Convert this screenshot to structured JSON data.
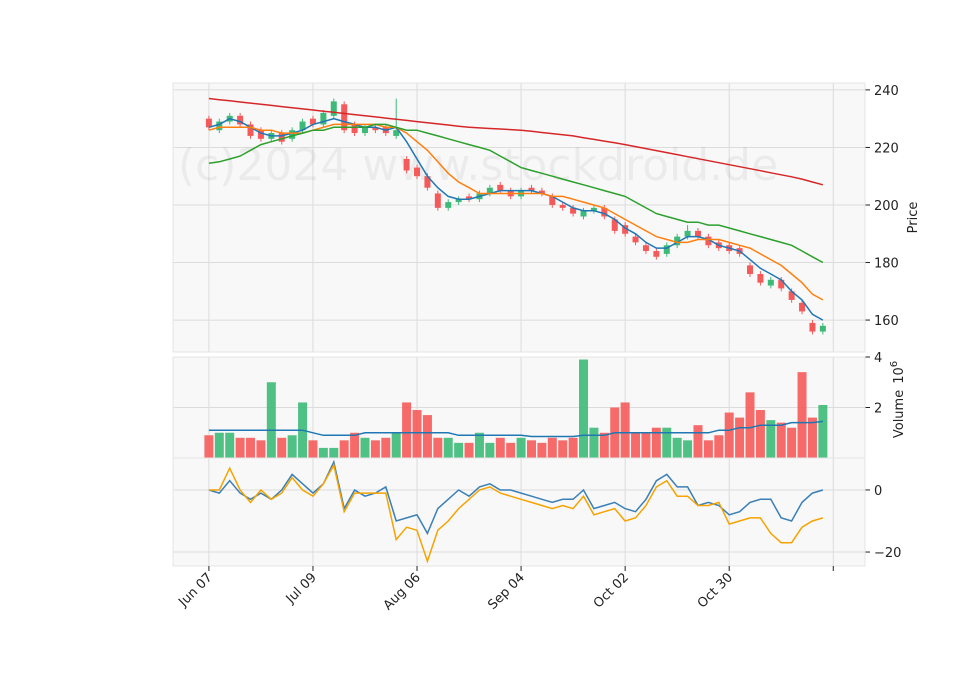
{
  "chart_data": [
    {
      "type": "candlestick",
      "ylabel": "Price",
      "annotation": "(c)2024 www.stockdroid.de",
      "x": [
        0,
        2,
        4,
        6,
        8,
        10,
        12,
        14,
        16,
        18,
        20,
        22,
        24,
        26,
        28,
        30,
        32,
        34,
        36,
        38,
        40,
        42,
        44,
        46,
        48,
        50,
        52,
        54,
        56,
        58,
        60,
        62,
        64,
        66,
        68,
        70,
        72,
        74,
        76,
        78,
        80,
        82,
        84,
        86,
        88,
        90,
        92,
        94,
        96,
        98,
        100,
        102,
        104,
        106,
        108,
        110,
        112,
        114,
        116,
        118
      ],
      "open": [
        230,
        226,
        229,
        231,
        228,
        226,
        223,
        225,
        223,
        226,
        230,
        228,
        231,
        235,
        228,
        225,
        227,
        227,
        224,
        216,
        213,
        210,
        204,
        199,
        201,
        203,
        202,
        204,
        207,
        205,
        203,
        206,
        205,
        203,
        200,
        199,
        196,
        198,
        199,
        195,
        193,
        189,
        186,
        184,
        183,
        186,
        189,
        191,
        189,
        187,
        186,
        185,
        179,
        176,
        172,
        174,
        170,
        166,
        159,
        156
      ],
      "high": [
        231,
        230,
        232,
        232,
        229,
        227,
        226,
        226,
        227,
        230,
        231,
        233,
        237,
        236,
        229,
        228,
        228,
        228,
        237,
        217,
        214,
        211,
        205,
        202,
        203,
        204,
        205,
        207,
        208,
        206,
        206,
        207,
        206,
        204,
        201,
        200,
        199,
        200,
        200,
        196,
        194,
        190,
        187,
        185,
        187,
        190,
        193,
        192,
        190,
        188,
        187,
        186,
        180,
        177,
        175,
        175,
        171,
        167,
        160,
        159
      ],
      "low": [
        226,
        225,
        228,
        227,
        223,
        222,
        222,
        221,
        222,
        225,
        227,
        227,
        230,
        225,
        224,
        224,
        225,
        224,
        223,
        211,
        209,
        205,
        198,
        198,
        200,
        201,
        201,
        203,
        204,
        202,
        202,
        204,
        203,
        199,
        198,
        196,
        195,
        197,
        195,
        190,
        189,
        186,
        183,
        181,
        182,
        185,
        188,
        188,
        185,
        184,
        183,
        182,
        175,
        172,
        171,
        170,
        166,
        162,
        155,
        155
      ],
      "close": [
        227,
        229,
        231,
        228,
        224,
        223,
        225,
        222,
        226,
        229,
        228,
        232,
        236,
        226,
        225,
        227,
        226,
        225,
        226,
        212,
        210,
        206,
        199,
        201,
        202,
        202,
        204,
        206,
        205,
        203,
        205,
        205,
        204,
        200,
        199,
        197,
        198,
        199,
        196,
        191,
        190,
        187,
        184,
        182,
        186,
        189,
        191,
        189,
        186,
        185,
        184,
        183,
        176,
        173,
        174,
        171,
        167,
        163,
        156,
        158
      ],
      "up_color": "#3dba78",
      "down_color": "#f55a5a",
      "series": [
        {
          "color": "#1f77b4",
          "values": [
            227,
            228,
            230,
            229,
            227,
            225,
            224,
            224,
            225,
            226,
            228,
            229,
            230,
            229,
            228,
            227,
            227,
            226,
            227,
            222,
            216,
            210,
            206,
            203,
            202,
            202,
            203,
            204,
            205,
            205,
            205,
            205,
            204,
            203,
            201,
            199,
            198,
            198,
            197,
            195,
            192,
            190,
            187,
            185,
            185,
            187,
            189,
            189,
            188,
            186,
            185,
            184,
            181,
            178,
            176,
            174,
            170,
            167,
            162,
            160
          ]
        },
        {
          "color": "#ff7f0e",
          "values": [
            226,
            227,
            227,
            227,
            227,
            226,
            226,
            225,
            225,
            225,
            226,
            227,
            228,
            228,
            228,
            228,
            228,
            227,
            227,
            225,
            222,
            219,
            215,
            211,
            208,
            206,
            204,
            204,
            204,
            204,
            204,
            204,
            204,
            203,
            203,
            202,
            201,
            200,
            199,
            197,
            195,
            193,
            191,
            189,
            188,
            187,
            187,
            188,
            188,
            188,
            187,
            186,
            185,
            183,
            181,
            179,
            176,
            173,
            169,
            167
          ]
        },
        {
          "color": "#2ca02c",
          "values": [
            214.5,
            215,
            216,
            217,
            219,
            221,
            222,
            223,
            224,
            225,
            226,
            226,
            227,
            227,
            227,
            227,
            228,
            228,
            227,
            226,
            226,
            225,
            224,
            223,
            222,
            221,
            220,
            219,
            217,
            215,
            213,
            212,
            211,
            210,
            209,
            208,
            207,
            206,
            205,
            204,
            203,
            201,
            199,
            197,
            196,
            195,
            194,
            194,
            193,
            193,
            192,
            191,
            190,
            189,
            188,
            187,
            186,
            184,
            182,
            180
          ]
        },
        {
          "color": "#d62728",
          "values": [
            237,
            236.6,
            236.2,
            235.8,
            235.4,
            235,
            234.6,
            234.2,
            233.8,
            233.4,
            233,
            232.6,
            232.2,
            231.8,
            231.4,
            231,
            230.6,
            230.2,
            229.8,
            229.4,
            229,
            228.6,
            228.2,
            227.8,
            227.4,
            227,
            226.8,
            226.6,
            226.4,
            226.2,
            226,
            225.6,
            225.2,
            224.8,
            224.4,
            224,
            223.4,
            222.8,
            222.2,
            221.6,
            221,
            220.3,
            219.6,
            218.9,
            218.2,
            217.5,
            216.8,
            216.1,
            215.4,
            214.7,
            214,
            213.3,
            212.6,
            211.9,
            211.2,
            210.5,
            209.8,
            209,
            208,
            207
          ]
        }
      ],
      "xlim": [
        -6.9,
        126.1
      ],
      "ylim": [
        148.9,
        242.4
      ],
      "yticks": [
        160,
        180,
        200,
        220,
        240
      ],
      "grid": true
    },
    {
      "type": "bar",
      "ylabel": "Volume",
      "y_multiplier": {
        "base": 10,
        "exponent": 6
      },
      "x": [
        0,
        2,
        4,
        6,
        8,
        10,
        12,
        14,
        16,
        18,
        20,
        22,
        24,
        26,
        28,
        30,
        32,
        34,
        36,
        38,
        40,
        42,
        44,
        46,
        48,
        50,
        52,
        54,
        56,
        58,
        60,
        62,
        64,
        66,
        68,
        70,
        72,
        74,
        76,
        78,
        80,
        82,
        84,
        86,
        88,
        90,
        92,
        94,
        96,
        98,
        100,
        102,
        104,
        106,
        108,
        110,
        112,
        114,
        116,
        118
      ],
      "values": [
        0.9,
        1.0,
        1.0,
        0.8,
        0.8,
        0.7,
        3.0,
        0.8,
        0.9,
        2.2,
        0.7,
        0.4,
        0.4,
        0.7,
        1.0,
        0.8,
        0.7,
        0.8,
        1.0,
        2.2,
        1.9,
        1.7,
        0.8,
        0.8,
        0.6,
        0.6,
        1.0,
        0.6,
        0.8,
        0.6,
        0.8,
        0.7,
        0.6,
        0.8,
        0.7,
        0.8,
        3.9,
        1.2,
        1.0,
        2.0,
        2.2,
        1.0,
        1.0,
        1.2,
        1.2,
        0.8,
        0.7,
        1.3,
        0.7,
        0.9,
        1.8,
        1.6,
        2.6,
        1.9,
        1.5,
        1.4,
        1.2,
        3.4,
        1.6,
        2.1
      ],
      "up_color": "#3dba78",
      "down_color": "#f55a5a",
      "series": [
        {
          "color": "#1f77b4",
          "values": [
            1.1,
            1.1,
            1.1,
            1.1,
            1.1,
            1.1,
            1.1,
            1.1,
            1.1,
            1.1,
            1.0,
            0.9,
            0.9,
            0.9,
            0.9,
            1.0,
            1.0,
            1.0,
            1.0,
            1.0,
            1.0,
            1.0,
            1.0,
            1.0,
            0.9,
            0.9,
            0.9,
            0.9,
            0.9,
            0.9,
            0.9,
            0.85,
            0.85,
            0.85,
            0.85,
            0.85,
            0.9,
            0.9,
            0.9,
            1.0,
            1.0,
            1.0,
            1.0,
            1.0,
            1.0,
            1.0,
            1.0,
            1.0,
            1.0,
            1.1,
            1.1,
            1.2,
            1.2,
            1.3,
            1.3,
            1.3,
            1.4,
            1.4,
            1.4,
            1.45
          ]
        }
      ],
      "xlim": [
        -6.9,
        126.1
      ],
      "ylim": [
        0,
        4
      ],
      "yticks": [
        2,
        4
      ],
      "grid": true
    },
    {
      "type": "line",
      "x": [
        0,
        2,
        4,
        6,
        8,
        10,
        12,
        14,
        16,
        18,
        20,
        22,
        24,
        26,
        28,
        30,
        32,
        34,
        36,
        38,
        40,
        42,
        44,
        46,
        48,
        50,
        52,
        54,
        56,
        58,
        60,
        62,
        64,
        66,
        68,
        70,
        72,
        74,
        76,
        78,
        80,
        82,
        84,
        86,
        88,
        90,
        92,
        94,
        96,
        98,
        100,
        102,
        104,
        106,
        108,
        110,
        112,
        114,
        116,
        118
      ],
      "series": [
        {
          "color": "#3a7fb5",
          "values": [
            0,
            -1,
            3,
            -1,
            -3,
            -1,
            -3,
            0,
            5,
            2,
            -1,
            2,
            9,
            -6,
            0,
            -2,
            -1,
            1,
            -10,
            -9,
            -8,
            -14,
            -6,
            -3,
            0,
            -2,
            1,
            2,
            0,
            0,
            -1,
            -2,
            -3,
            -4,
            -3,
            -3,
            0,
            -6,
            -5,
            -4,
            -6,
            -7,
            -3,
            3,
            5,
            1,
            1,
            -5,
            -4,
            -5,
            -8,
            -7,
            -4,
            -3,
            -3,
            -9,
            -10,
            -4,
            -1,
            0
          ]
        },
        {
          "color": "#f5a300",
          "values": [
            0,
            0,
            7,
            0,
            -4,
            0,
            -3,
            -1,
            4,
            0,
            -2,
            2,
            8,
            -7,
            -1,
            -1,
            -1,
            -1,
            -16,
            -12,
            -13,
            -23,
            -13,
            -10,
            -6,
            -3,
            0,
            1,
            -1,
            -2,
            -3,
            -4,
            -5,
            -6,
            -5,
            -6,
            -2,
            -8,
            -7,
            -6,
            -10,
            -9,
            -5,
            1,
            3,
            -2,
            -2,
            -5,
            -5,
            -4,
            -11,
            -10,
            -9,
            -9,
            -14,
            -17,
            -17,
            -12,
            -10,
            -9
          ]
        }
      ],
      "xlim": [
        -6.9,
        126.1
      ],
      "ylim": [
        -24.5,
        10.3
      ],
      "yticks": [
        {
          "value": -20,
          "label": "−20"
        },
        0
      ],
      "xticks": [
        {
          "value": 0,
          "label": "Jun 07"
        },
        {
          "value": 20,
          "label": "Jul 09"
        },
        {
          "value": 40,
          "label": "Aug 06"
        },
        {
          "value": 60,
          "label": "Sep 04"
        },
        {
          "value": 80,
          "label": "Oct 02"
        },
        {
          "value": 100,
          "label": "Oct 30"
        },
        {
          "value": 120,
          "label": null
        }
      ],
      "grid": true
    }
  ]
}
